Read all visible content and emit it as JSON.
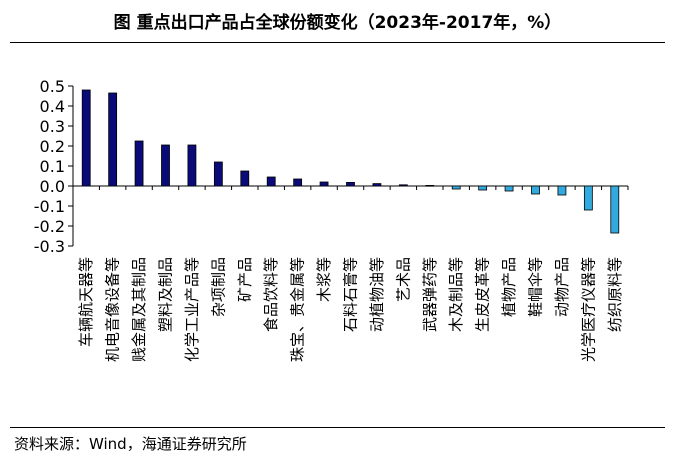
{
  "title": "图  重点出口产品占全球份额变化（2023年-2017年，%）",
  "source": "资料来源：Wind，海通证券研究所",
  "chart_data": {
    "type": "bar",
    "title": "图  重点出口产品占全球份额变化（2023年-2017年，%）",
    "xlabel": "",
    "ylabel": "",
    "ylim": [
      -0.3,
      0.5
    ],
    "yticks": [
      "0.5",
      "0.4",
      "0.3",
      "0.2",
      "0.1",
      "0.0",
      "-0.1",
      "-0.2",
      "-0.3"
    ],
    "ytick_values": [
      0.5,
      0.4,
      0.3,
      0.2,
      0.1,
      0.0,
      -0.1,
      -0.2,
      -0.3
    ],
    "grid": false,
    "legend": "none",
    "colors": {
      "positive": "#0a0a78",
      "negative": "#33aadd"
    },
    "categories": [
      "车辆航天器等",
      "机电音像设备等",
      "贱金属及其制品",
      "塑料及制品",
      "化学工业产品等",
      "杂项制品",
      "矿产品",
      "食品饮料等",
      "珠宝、贵金属等",
      "木浆等",
      "石料石膏等",
      "动植物油等",
      "艺术品",
      "武器弹药等",
      "木及制品等",
      "生皮皮革等",
      "植物产品",
      "鞋帽伞等",
      "动物产品",
      "光学医疗仪器等",
      "纺织原料等"
    ],
    "values": [
      0.48,
      0.465,
      0.225,
      0.205,
      0.205,
      0.12,
      0.075,
      0.045,
      0.035,
      0.02,
      0.018,
      0.012,
      0.006,
      0.003,
      -0.015,
      -0.02,
      -0.025,
      -0.04,
      -0.045,
      -0.12,
      -0.235
    ]
  }
}
